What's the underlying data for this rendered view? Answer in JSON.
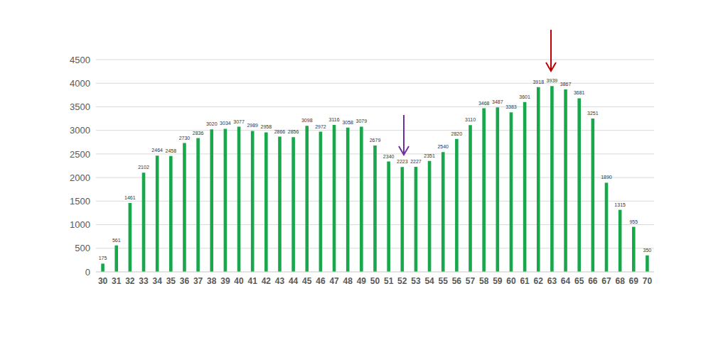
{
  "chart_data": {
    "type": "bar",
    "categories": [
      "30",
      "31",
      "32",
      "33",
      "34",
      "35",
      "36",
      "37",
      "38",
      "39",
      "40",
      "41",
      "42",
      "43",
      "44",
      "45",
      "46",
      "47",
      "48",
      "49",
      "50",
      "51",
      "52",
      "53",
      "54",
      "55",
      "56",
      "57",
      "58",
      "59",
      "60",
      "61",
      "62",
      "63",
      "64",
      "65",
      "66",
      "67",
      "68",
      "69",
      "70"
    ],
    "values": [
      175,
      561,
      1461,
      2102,
      2464,
      2458,
      2730,
      2836,
      3020,
      3034,
      3077,
      2989,
      2958,
      2866,
      2856,
      3098,
      2972,
      3116,
      3058,
      3079,
      2679,
      2340,
      2223,
      2227,
      2351,
      2540,
      2820,
      3110,
      3468,
      3487,
      3383,
      3601,
      3918,
      3939,
      3867,
      3681,
      3251,
      1890,
      1315,
      955,
      350
    ],
    "color": "#18a84b",
    "ylim": [
      0,
      4500
    ],
    "yticks": [
      0,
      500,
      1000,
      1500,
      2000,
      2500,
      3000,
      3500,
      4000,
      4500
    ],
    "grid": true,
    "data_labels": true
  }
}
